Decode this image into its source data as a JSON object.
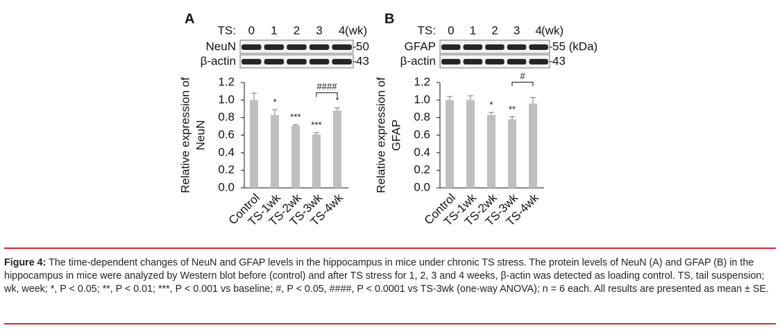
{
  "chart_data": [
    {
      "type": "bar",
      "panel": "A",
      "blot": {
        "header": "TS:",
        "lanes": [
          "0",
          "1",
          "2",
          "3",
          "4"
        ],
        "unit": "(wk)",
        "rows": [
          {
            "name": "NeuN",
            "marker": "50"
          },
          {
            "name": "β-actin",
            "marker": "43"
          }
        ]
      },
      "ylabel": [
        "Relative expression of",
        "NeuN"
      ],
      "categories": [
        "Control",
        "TS-1wk",
        "TS-2wk",
        "TS-3wk",
        "TS-4wk"
      ],
      "values": [
        1.0,
        0.83,
        0.71,
        0.61,
        0.88
      ],
      "errors": [
        0.08,
        0.06,
        0.01,
        0.02,
        0.03
      ],
      "significance": [
        null,
        "*",
        "***",
        "***",
        "*"
      ],
      "comparisons": [
        {
          "categories": [
            "TS-3wk",
            "TS-4wk"
          ],
          "label": "####"
        }
      ],
      "color": "#bfbfbf",
      "ylim": [
        0,
        1.2
      ],
      "yticks": [
        {
          "value": 0,
          "label": "0.0"
        },
        {
          "value": 0.2,
          "label": "0.2"
        },
        {
          "value": 0.4,
          "label": "0.4"
        },
        {
          "value": 0.6,
          "label": "0.6"
        },
        {
          "value": 0.8,
          "label": "0.8"
        },
        {
          "value": 1.0,
          "label": "1.0"
        },
        {
          "value": 1.2,
          "label": "1.2"
        }
      ]
    },
    {
      "type": "bar",
      "panel": "B",
      "blot": {
        "header": "TS:",
        "lanes": [
          "0",
          "1",
          "2",
          "3",
          "4"
        ],
        "unit": "(wk)",
        "rows": [
          {
            "name": "GFAP",
            "marker": "55 (kDa)"
          },
          {
            "name": "β-actin",
            "marker": "43"
          }
        ]
      },
      "ylabel": [
        "Relative expression of",
        "GFAP"
      ],
      "categories": [
        "Control",
        "TS-1wk",
        "TS-2wk",
        "TS-3wk",
        "TS-4wk"
      ],
      "values": [
        1.0,
        1.0,
        0.83,
        0.78,
        0.96
      ],
      "errors": [
        0.04,
        0.05,
        0.03,
        0.03,
        0.07
      ],
      "significance": [
        null,
        null,
        "*",
        "**",
        null
      ],
      "comparisons": [
        {
          "categories": [
            "TS-3wk",
            "TS-4wk"
          ],
          "label": "#"
        }
      ],
      "color": "#bfbfbf",
      "ylim": [
        0,
        1.2
      ],
      "yticks": [
        {
          "value": 0,
          "label": "0.0"
        },
        {
          "value": 0.2,
          "label": "0.2"
        },
        {
          "value": 0.4,
          "label": "0.4"
        },
        {
          "value": 0.6,
          "label": "0.6"
        },
        {
          "value": 0.8,
          "label": "0.8"
        },
        {
          "value": 1.0,
          "label": "1.0"
        },
        {
          "value": 1.2,
          "label": "1.2"
        }
      ]
    }
  ],
  "caption": {
    "label": "Figure 4:",
    "text": "The time-dependent changes of NeuN and GFAP levels in the hippocampus in mice under chronic TS stress. The protein levels of NeuN (A) and GFAP (B) in the hippocampus in mice were analyzed by Western blot before (control) and after TS stress for 1, 2, 3 and 4 weeks, β-actin was detected as loading control. TS, tail suspension; wk, week; *, P < 0.05; **, P < 0.01; ***, P < 0.001 vs baseline; #, P < 0.05, ####, P < 0.0001 vs TS-3wk (one-way ANOVA); n = 6 each. All results are presented as mean ± SE."
  }
}
